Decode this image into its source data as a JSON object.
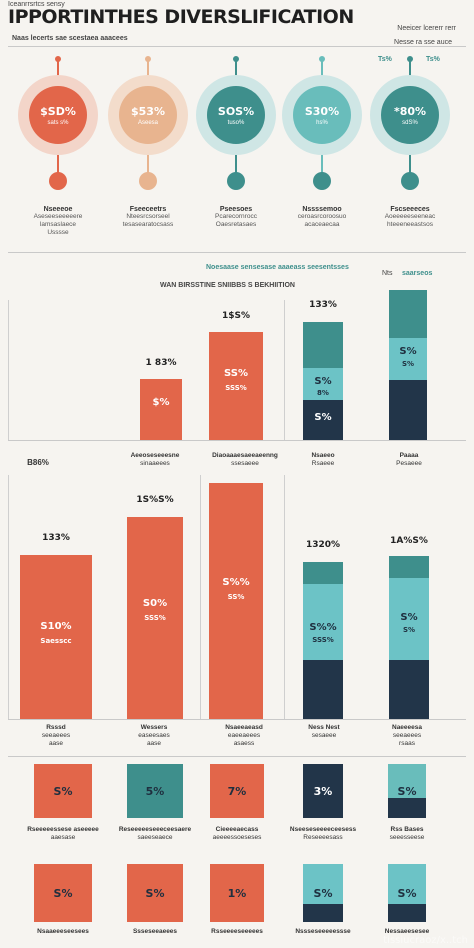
{
  "header": {
    "tag": "Iceanrrsrtcs sensy",
    "title": "IPPORTINTHES DIVERSLIFICATION",
    "subtitle": "Naas lecerts sae scestaea aaacees",
    "right_line1": "Neeicer lcererr rerr",
    "right_line2": "Nesse ra sse auce",
    "right_pct_left": "Ts%",
    "right_pct_right": "Ts%"
  },
  "colors": {
    "coral": "#e2664a",
    "peach": "#e8b48f",
    "teal": "#3e8f8c",
    "teal_light": "#69bdbb",
    "aqua": "#6cc3c6",
    "navy": "#223549",
    "bg": "#f6f4f0"
  },
  "circles": [
    {
      "pct": "$SD%",
      "sub": "sats s%",
      "title": "Nseeeoe",
      "desc1": "Aseseeseeeeere",
      "desc2": "lamsaslaece",
      "desc3": "Usssse"
    },
    {
      "pct": "$53%",
      "sub": "Aseesa",
      "title": "Fseeceetrs",
      "desc1": "Nteesrcsorseel",
      "desc2": "tesasearatocsass",
      "desc3": ""
    },
    {
      "pct": "SOS%",
      "sub": "tuso%",
      "title": "Pseesoes",
      "desc1": "Pcarecornrocc",
      "desc2": "Oaesretasaes",
      "desc3": ""
    },
    {
      "pct": "S30%",
      "sub": "hs%",
      "title": "Nssssemoo",
      "desc1": "ceroasrcoroosuo",
      "desc2": "acaceaecaa",
      "desc3": ""
    },
    {
      "pct": "*80%",
      "sub": "sdS%",
      "title": "Fscseeeces",
      "desc1": "Aoeeeeeseeneac",
      "desc2": "hteeeneeastsos",
      "desc3": ""
    }
  ],
  "section2": {
    "band_text": "Noesaase sensesase aaaeass seesentsses",
    "band_right": "Nts",
    "band_right2": "saarseos",
    "chart_title": "WAN BIRSSTINE SNIIBBS S BEKHIITION"
  },
  "chart_data": [
    {
      "type": "bar",
      "title": "WAN BIRSSTINE SNIIBBS S BEKHIITION",
      "categories": [
        "B86%",
        "Aeeoseseeesne",
        "Diaoaaaesaeeaeenng",
        "Nsaeeo",
        "Paaaa"
      ],
      "series": [
        {
          "values": [
            0,
            18,
            35,
            0,
            0
          ],
          "labels": [
            "",
            "18S%",
            "1$S%",
            "",
            ""
          ],
          "inner_labels": [
            "",
            "$%",
            "SS%",
            "",
            ""
          ]
        },
        {
          "stacked": true,
          "values": [
            0,
            0,
            0,
            37,
            44
          ],
          "labels": [
            "",
            "",
            "",
            "133%",
            ""
          ],
          "inner_labels": [
            "",
            "",
            "",
            "S%",
            "S%"
          ]
        }
      ],
      "ylim": [
        0,
        45
      ]
    },
    {
      "type": "bar",
      "categories": [
        "Rsssd",
        "Wessers",
        "Nsaeeaeasd",
        "Ness Nest",
        "Naeeeesa"
      ],
      "series": [
        {
          "values": [
            52,
            62,
            73,
            0,
            0
          ],
          "labels": [
            "133%",
            "1S%S%",
            "",
            "",
            ""
          ],
          "inner_labels": [
            "S10%",
            "S0%",
            "S%%",
            "",
            ""
          ]
        },
        {
          "stacked": true,
          "values": [
            0,
            0,
            0,
            50,
            52
          ],
          "labels": [
            "",
            "",
            "",
            "1320%",
            "1A%S%"
          ],
          "inner_labels": [
            "",
            "",
            "",
            "",
            "S%"
          ]
        }
      ],
      "ylim": [
        0,
        75
      ]
    }
  ],
  "panel1": {
    "cats": [
      {
        "l1": "B86%",
        "l2": ""
      },
      {
        "l1": "Aeeoseseeesne",
        "l2": "sinaaeees"
      },
      {
        "l1": "Diaoaaaesaeeaeenng",
        "l2": "ssesaeee"
      },
      {
        "l1": "Nsaeeo",
        "l2": "Rsaeee"
      },
      {
        "l1": "Paaaa",
        "l2": "Pesaeee"
      }
    ],
    "bars": [
      {
        "top": "1 83%",
        "in": "$%"
      },
      {
        "top": "1$S%",
        "in": "SS%",
        "in2": "SSS%"
      },
      {
        "top": "133%",
        "in": "S%",
        "in2": "8%",
        "in3": "S%"
      },
      {
        "top": "",
        "in": "S%",
        "in2": "S%"
      }
    ]
  },
  "panel2": {
    "bars": [
      {
        "top": "133%",
        "in": "S10%",
        "in2": "Saesscc"
      },
      {
        "top": "1S%S%",
        "in": "S0%",
        "in2": "SSS%"
      },
      {
        "top": "",
        "in": "S%%",
        "in2": "SS%"
      },
      {
        "top": "1320%",
        "in": "S%%",
        "in2": "SSS%"
      },
      {
        "top": "1A%S%",
        "in": "S%",
        "in2": "S%"
      }
    ],
    "cats": [
      {
        "l1": "Rsssd",
        "l2": "seeaeees",
        "l3": "aase"
      },
      {
        "l1": "Wessers",
        "l2": "easeesaes",
        "l3": "aase"
      },
      {
        "l1": "Nsaeeaeasd",
        "l2": "eaeeaeees",
        "l3": "asaess"
      },
      {
        "l1": "Ness Nest",
        "l2": "sesaeee",
        "l3": ""
      },
      {
        "l1": "Naeeeesa",
        "l2": "seeaeees",
        "l3": "rsaas"
      }
    ]
  },
  "tiles_row1": [
    {
      "value": "S%",
      "desc1": "Rseeeeessese aseeeee",
      "desc2": "aaesase"
    },
    {
      "value": "5%",
      "desc1": "Reseeeeeseeeceesaere",
      "desc2": "saeeseaece"
    },
    {
      "value": "7%",
      "desc1": "Cieeeeaecass",
      "desc2": "aeeeessoeseses"
    },
    {
      "value": "3%",
      "desc1": "Nseeseseeeeceesess",
      "desc2": "Reseeeesass"
    },
    {
      "value": "S%",
      "desc1": "Rss Bases",
      "desc2": "seeesseese"
    }
  ],
  "tiles_row2": [
    {
      "value": "S%",
      "desc1": "Nsaaeeeseesees"
    },
    {
      "value": "S%",
      "desc1": "Ssseseeaeees"
    },
    {
      "value": "1%",
      "desc1": "Rsseeeeseeeees"
    },
    {
      "value": "S%",
      "desc1": "Nssseseeeeessse"
    },
    {
      "value": "S%",
      "desc1": "Nessaeesesee"
    }
  ],
  "watermark": "tissiucraoz/x..tch"
}
